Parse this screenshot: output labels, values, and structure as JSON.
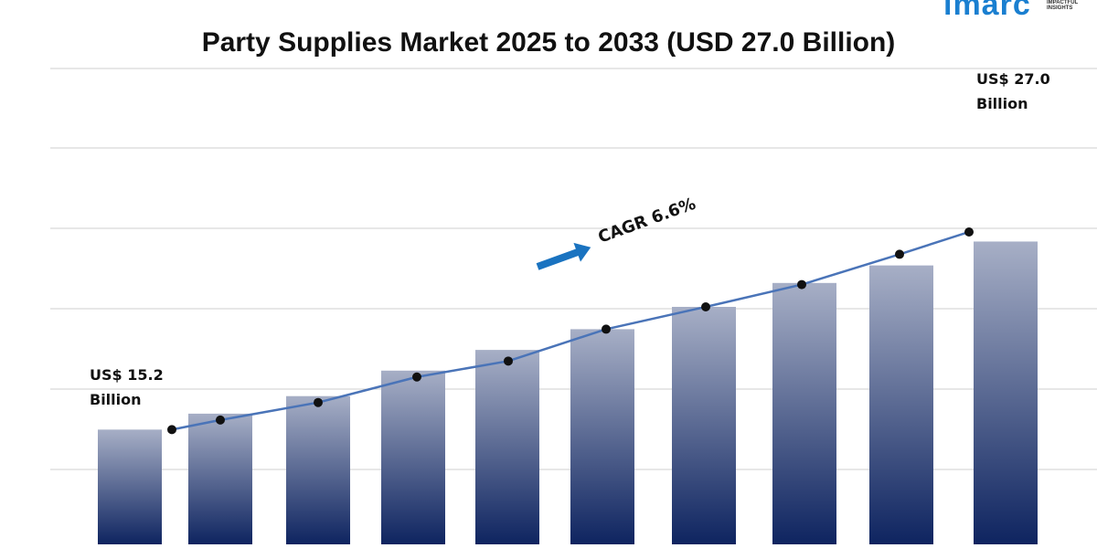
{
  "brand": {
    "logo_text": "imarc",
    "logo_sub": "IMPACTFUL INSIGHTS"
  },
  "chart_data": {
    "type": "bar",
    "title": "Party Supplies Market 2025 to 2033 (USD 27.0 Billion)",
    "categories": [
      "",
      "",
      "",
      "",
      "",
      "",
      "",
      "",
      "",
      ""
    ],
    "series": [
      {
        "values": [
          15.2,
          16.2,
          17.3,
          18.9,
          20.2,
          21.5,
          22.9,
          24.4,
          25.5,
          27.0
        ]
      }
    ],
    "line_values": [
      15.2,
      15.8,
      16.9,
      18.5,
      19.5,
      21.5,
      22.9,
      24.3,
      26.2,
      27.6
    ],
    "annotations": {
      "start_value": "US$ 15.2",
      "start_unit": "Billion",
      "end_value": "US$ 27.0",
      "end_unit": "Billion",
      "cagr": "CAGR 6.6%"
    },
    "grid": true,
    "legend": "none",
    "colors": {
      "bar_top": "#a7afc6",
      "bar_bottom": "#0e2460",
      "line": "#4a74b8",
      "point": "#111111",
      "arrow": "#1a73c0",
      "grid": "#cfcfcf"
    }
  }
}
